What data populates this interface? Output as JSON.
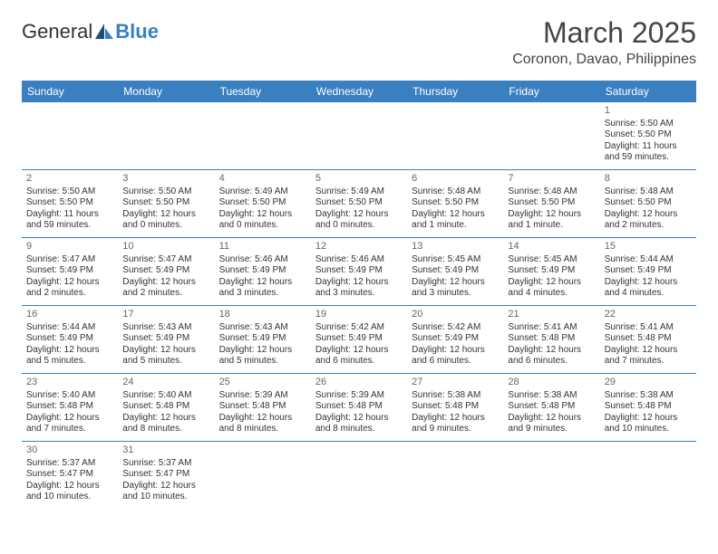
{
  "logo": {
    "text1": "General",
    "text2": "Blue"
  },
  "title": "March 2025",
  "location": "Coronon, Davao, Philippines",
  "colors": {
    "header_bg": "#3a7fbf",
    "header_text": "#ffffff",
    "border": "#3a7fbf",
    "text": "#333333",
    "daynum": "#666666",
    "background": "#ffffff"
  },
  "day_headers": [
    "Sunday",
    "Monday",
    "Tuesday",
    "Wednesday",
    "Thursday",
    "Friday",
    "Saturday"
  ],
  "weeks": [
    [
      null,
      null,
      null,
      null,
      null,
      null,
      {
        "n": "1",
        "rise": "Sunrise: 5:50 AM",
        "set": "Sunset: 5:50 PM",
        "dl": "Daylight: 11 hours and 59 minutes."
      }
    ],
    [
      {
        "n": "2",
        "rise": "Sunrise: 5:50 AM",
        "set": "Sunset: 5:50 PM",
        "dl": "Daylight: 11 hours and 59 minutes."
      },
      {
        "n": "3",
        "rise": "Sunrise: 5:50 AM",
        "set": "Sunset: 5:50 PM",
        "dl": "Daylight: 12 hours and 0 minutes."
      },
      {
        "n": "4",
        "rise": "Sunrise: 5:49 AM",
        "set": "Sunset: 5:50 PM",
        "dl": "Daylight: 12 hours and 0 minutes."
      },
      {
        "n": "5",
        "rise": "Sunrise: 5:49 AM",
        "set": "Sunset: 5:50 PM",
        "dl": "Daylight: 12 hours and 0 minutes."
      },
      {
        "n": "6",
        "rise": "Sunrise: 5:48 AM",
        "set": "Sunset: 5:50 PM",
        "dl": "Daylight: 12 hours and 1 minute."
      },
      {
        "n": "7",
        "rise": "Sunrise: 5:48 AM",
        "set": "Sunset: 5:50 PM",
        "dl": "Daylight: 12 hours and 1 minute."
      },
      {
        "n": "8",
        "rise": "Sunrise: 5:48 AM",
        "set": "Sunset: 5:50 PM",
        "dl": "Daylight: 12 hours and 2 minutes."
      }
    ],
    [
      {
        "n": "9",
        "rise": "Sunrise: 5:47 AM",
        "set": "Sunset: 5:49 PM",
        "dl": "Daylight: 12 hours and 2 minutes."
      },
      {
        "n": "10",
        "rise": "Sunrise: 5:47 AM",
        "set": "Sunset: 5:49 PM",
        "dl": "Daylight: 12 hours and 2 minutes."
      },
      {
        "n": "11",
        "rise": "Sunrise: 5:46 AM",
        "set": "Sunset: 5:49 PM",
        "dl": "Daylight: 12 hours and 3 minutes."
      },
      {
        "n": "12",
        "rise": "Sunrise: 5:46 AM",
        "set": "Sunset: 5:49 PM",
        "dl": "Daylight: 12 hours and 3 minutes."
      },
      {
        "n": "13",
        "rise": "Sunrise: 5:45 AM",
        "set": "Sunset: 5:49 PM",
        "dl": "Daylight: 12 hours and 3 minutes."
      },
      {
        "n": "14",
        "rise": "Sunrise: 5:45 AM",
        "set": "Sunset: 5:49 PM",
        "dl": "Daylight: 12 hours and 4 minutes."
      },
      {
        "n": "15",
        "rise": "Sunrise: 5:44 AM",
        "set": "Sunset: 5:49 PM",
        "dl": "Daylight: 12 hours and 4 minutes."
      }
    ],
    [
      {
        "n": "16",
        "rise": "Sunrise: 5:44 AM",
        "set": "Sunset: 5:49 PM",
        "dl": "Daylight: 12 hours and 5 minutes."
      },
      {
        "n": "17",
        "rise": "Sunrise: 5:43 AM",
        "set": "Sunset: 5:49 PM",
        "dl": "Daylight: 12 hours and 5 minutes."
      },
      {
        "n": "18",
        "rise": "Sunrise: 5:43 AM",
        "set": "Sunset: 5:49 PM",
        "dl": "Daylight: 12 hours and 5 minutes."
      },
      {
        "n": "19",
        "rise": "Sunrise: 5:42 AM",
        "set": "Sunset: 5:49 PM",
        "dl": "Daylight: 12 hours and 6 minutes."
      },
      {
        "n": "20",
        "rise": "Sunrise: 5:42 AM",
        "set": "Sunset: 5:49 PM",
        "dl": "Daylight: 12 hours and 6 minutes."
      },
      {
        "n": "21",
        "rise": "Sunrise: 5:41 AM",
        "set": "Sunset: 5:48 PM",
        "dl": "Daylight: 12 hours and 6 minutes."
      },
      {
        "n": "22",
        "rise": "Sunrise: 5:41 AM",
        "set": "Sunset: 5:48 PM",
        "dl": "Daylight: 12 hours and 7 minutes."
      }
    ],
    [
      {
        "n": "23",
        "rise": "Sunrise: 5:40 AM",
        "set": "Sunset: 5:48 PM",
        "dl": "Daylight: 12 hours and 7 minutes."
      },
      {
        "n": "24",
        "rise": "Sunrise: 5:40 AM",
        "set": "Sunset: 5:48 PM",
        "dl": "Daylight: 12 hours and 8 minutes."
      },
      {
        "n": "25",
        "rise": "Sunrise: 5:39 AM",
        "set": "Sunset: 5:48 PM",
        "dl": "Daylight: 12 hours and 8 minutes."
      },
      {
        "n": "26",
        "rise": "Sunrise: 5:39 AM",
        "set": "Sunset: 5:48 PM",
        "dl": "Daylight: 12 hours and 8 minutes."
      },
      {
        "n": "27",
        "rise": "Sunrise: 5:38 AM",
        "set": "Sunset: 5:48 PM",
        "dl": "Daylight: 12 hours and 9 minutes."
      },
      {
        "n": "28",
        "rise": "Sunrise: 5:38 AM",
        "set": "Sunset: 5:48 PM",
        "dl": "Daylight: 12 hours and 9 minutes."
      },
      {
        "n": "29",
        "rise": "Sunrise: 5:38 AM",
        "set": "Sunset: 5:48 PM",
        "dl": "Daylight: 12 hours and 10 minutes."
      }
    ],
    [
      {
        "n": "30",
        "rise": "Sunrise: 5:37 AM",
        "set": "Sunset: 5:47 PM",
        "dl": "Daylight: 12 hours and 10 minutes."
      },
      {
        "n": "31",
        "rise": "Sunrise: 5:37 AM",
        "set": "Sunset: 5:47 PM",
        "dl": "Daylight: 12 hours and 10 minutes."
      },
      null,
      null,
      null,
      null,
      null
    ]
  ]
}
